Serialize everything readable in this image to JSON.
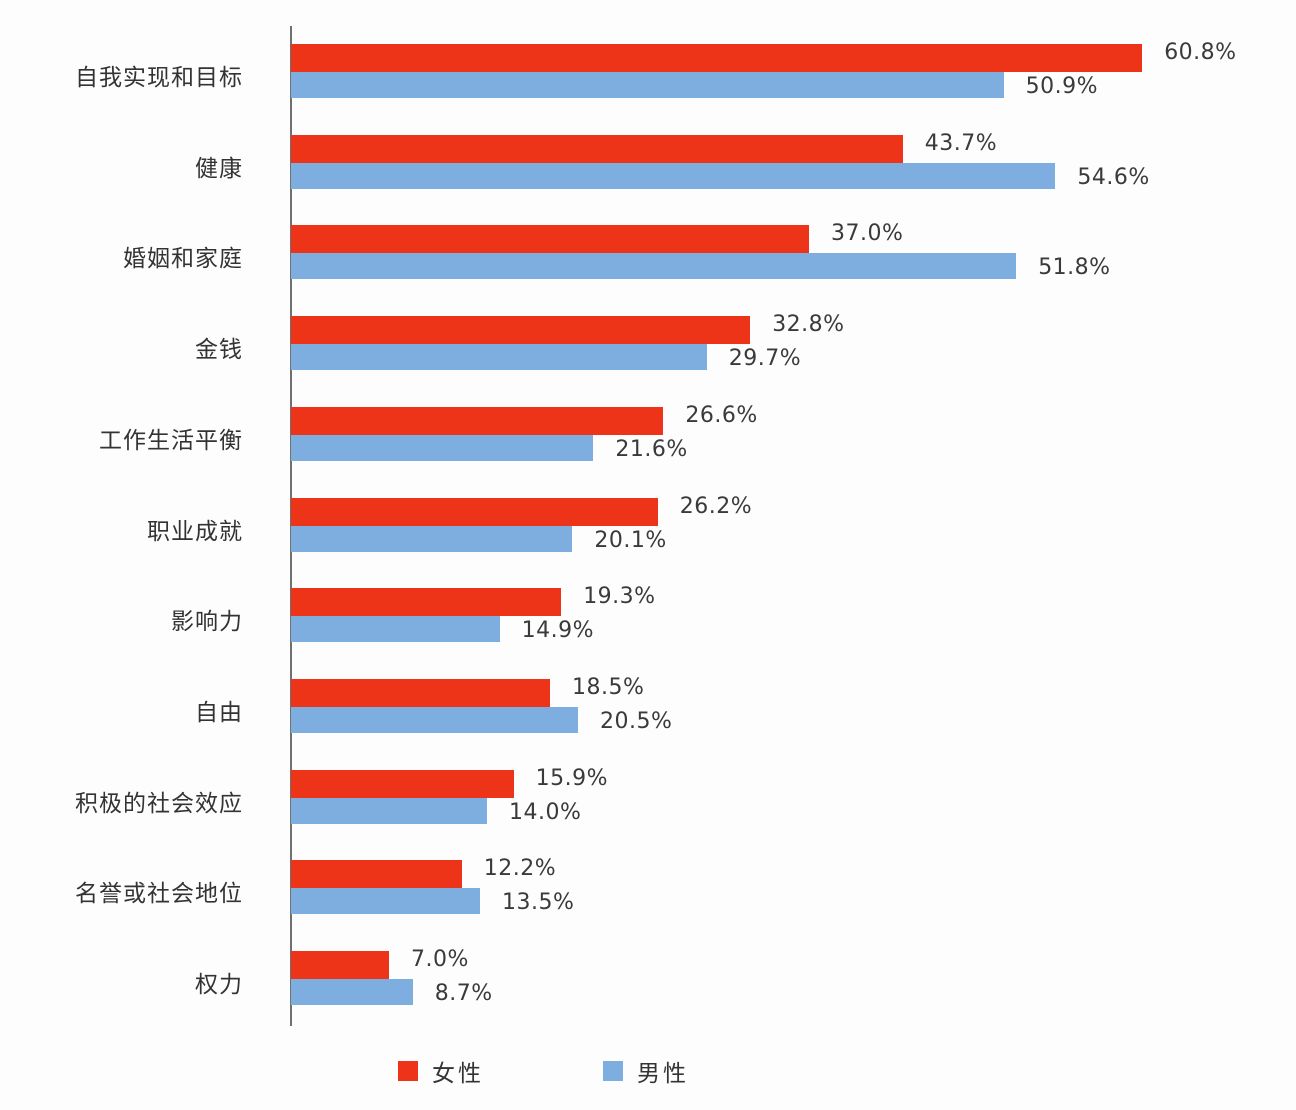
{
  "colors": {
    "female": "#ee3418",
    "male": "#7eaee0",
    "axis": "#707070"
  },
  "legend": [
    {
      "label": "女性",
      "color": "#ee3418"
    },
    {
      "label": "男性",
      "color": "#7eaee0"
    }
  ],
  "chart_data": {
    "type": "bar",
    "orientation": "horizontal",
    "title": "",
    "xlabel": "",
    "ylabel": "",
    "xlim": [
      0,
      70
    ],
    "grid": false,
    "legend_position": "bottom",
    "categories": [
      "自我实现和目标",
      "健康",
      "婚姻和家庭",
      "金钱",
      "工作生活平衡",
      "职业成就",
      "影响力",
      "自由",
      "积极的社会效应",
      "名誉或社会地位",
      "权力"
    ],
    "series": [
      {
        "name": "女性",
        "color": "#ee3418",
        "values": [
          60.8,
          43.7,
          37.0,
          32.8,
          26.6,
          26.2,
          19.3,
          18.5,
          15.9,
          12.2,
          7.0
        ],
        "labels": [
          "60.8%",
          "43.7%",
          "37.0%",
          "32.8%",
          "26.6%",
          "26.2%",
          "19.3%",
          "18.5%",
          "15.9%",
          "12.2%",
          "7.0%"
        ]
      },
      {
        "name": "男性",
        "color": "#7eaee0",
        "values": [
          50.9,
          54.6,
          51.8,
          29.7,
          21.6,
          20.1,
          14.9,
          20.5,
          14.0,
          13.5,
          8.7
        ],
        "labels": [
          "50.9%",
          "54.6%",
          "51.8%",
          "29.7%",
          "21.6%",
          "20.1%",
          "14.9%",
          "20.5%",
          "14.0%",
          "13.5%",
          "8.7%"
        ]
      }
    ]
  }
}
